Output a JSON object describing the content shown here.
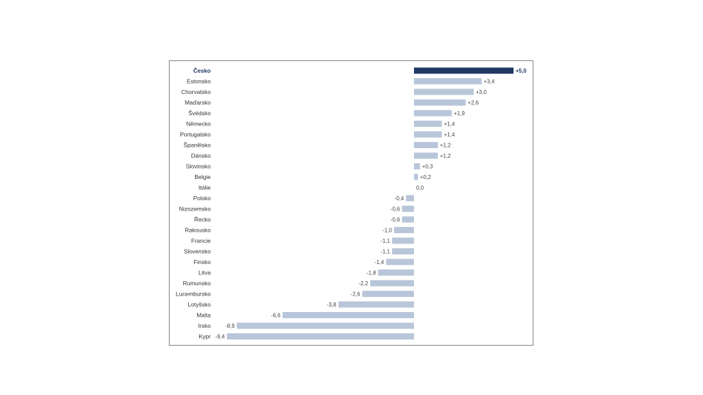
{
  "chart_data": {
    "type": "bar",
    "orientation": "horizontal",
    "highlight_category": "Česko",
    "colors": {
      "default": "#b9c6da",
      "highlight": "#1f3864"
    },
    "xlim": [
      -9.4,
      5.0
    ],
    "categories": [
      "Česko",
      "Estonsko",
      "Chorvatsko",
      "Maďarsko",
      "Švédsko",
      "Německo",
      "Portugalsko",
      "Španělsko",
      "Dánsko",
      "Slovinsko",
      "Belgie",
      "Itálie",
      "Polsko",
      "Nizozemsko",
      "Řecko",
      "Rakousko",
      "Francie",
      "Slovensko",
      "Finsko",
      "Litva",
      "Rumunsko",
      "Lucembursko",
      "Lotyšsko",
      "Malta",
      "Irsko",
      "Kypr"
    ],
    "values": [
      5.0,
      3.4,
      3.0,
      2.6,
      1.9,
      1.4,
      1.4,
      1.2,
      1.2,
      0.3,
      0.2,
      0.0,
      -0.4,
      -0.6,
      -0.6,
      -1.0,
      -1.1,
      -1.1,
      -1.4,
      -1.8,
      -2.2,
      -2.6,
      -3.8,
      -6.6,
      -8.9,
      -9.4
    ],
    "value_labels": [
      "+5,0",
      "+3,4",
      "+3,0",
      "+2,6",
      "+1,9",
      "+1,4",
      "+1,4",
      "+1,2",
      "+1,2",
      "+0,3",
      "+0,2",
      "0,0",
      "-0,4",
      "-0,6",
      "-0,6",
      "-1,0",
      "-1,1",
      "-1,1",
      "-1,4",
      "-1,8",
      "-2,2",
      "-2,6",
      "-3,8",
      "-6,6",
      "-8,9",
      "-9,4"
    ]
  }
}
